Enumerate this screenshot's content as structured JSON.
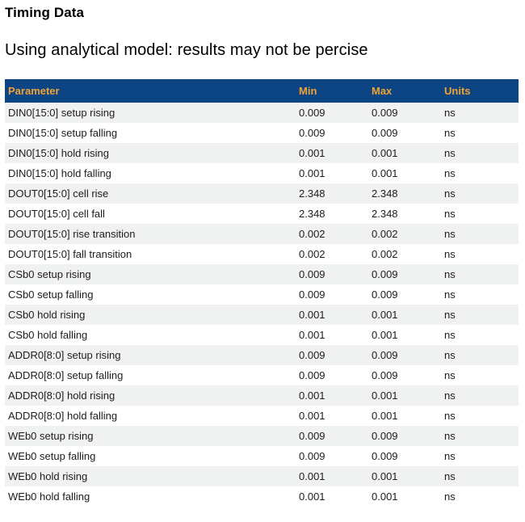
{
  "page": {
    "title": "Timing Data",
    "subtitle": "Using analytical model: results may not be percise"
  },
  "table": {
    "columns": [
      "Parameter",
      "Min",
      "Max",
      "Units"
    ],
    "rows": [
      {
        "parameter": "DIN0[15:0] setup rising",
        "min": "0.009",
        "max": "0.009",
        "units": "ns"
      },
      {
        "parameter": "DIN0[15:0] setup falling",
        "min": "0.009",
        "max": "0.009",
        "units": "ns"
      },
      {
        "parameter": "DIN0[15:0] hold rising",
        "min": "0.001",
        "max": "0.001",
        "units": "ns"
      },
      {
        "parameter": "DIN0[15:0] hold falling",
        "min": "0.001",
        "max": "0.001",
        "units": "ns"
      },
      {
        "parameter": "DOUT0[15:0] cell rise",
        "min": "2.348",
        "max": "2.348",
        "units": "ns"
      },
      {
        "parameter": "DOUT0[15:0] cell fall",
        "min": "2.348",
        "max": "2.348",
        "units": "ns"
      },
      {
        "parameter": "DOUT0[15:0] rise transition",
        "min": "0.002",
        "max": "0.002",
        "units": "ns"
      },
      {
        "parameter": "DOUT0[15:0] fall transition",
        "min": "0.002",
        "max": "0.002",
        "units": "ns"
      },
      {
        "parameter": "CSb0 setup rising",
        "min": "0.009",
        "max": "0.009",
        "units": "ns"
      },
      {
        "parameter": "CSb0 setup falling",
        "min": "0.009",
        "max": "0.009",
        "units": "ns"
      },
      {
        "parameter": "CSb0 hold rising",
        "min": "0.001",
        "max": "0.001",
        "units": "ns"
      },
      {
        "parameter": "CSb0 hold falling",
        "min": "0.001",
        "max": "0.001",
        "units": "ns"
      },
      {
        "parameter": "ADDR0[8:0] setup rising",
        "min": "0.009",
        "max": "0.009",
        "units": "ns"
      },
      {
        "parameter": "ADDR0[8:0] setup falling",
        "min": "0.009",
        "max": "0.009",
        "units": "ns"
      },
      {
        "parameter": "ADDR0[8:0] hold rising",
        "min": "0.001",
        "max": "0.001",
        "units": "ns"
      },
      {
        "parameter": "ADDR0[8:0] hold falling",
        "min": "0.001",
        "max": "0.001",
        "units": "ns"
      },
      {
        "parameter": "WEb0 setup rising",
        "min": "0.009",
        "max": "0.009",
        "units": "ns"
      },
      {
        "parameter": "WEb0 setup falling",
        "min": "0.009",
        "max": "0.009",
        "units": "ns"
      },
      {
        "parameter": "WEb0 hold rising",
        "min": "0.001",
        "max": "0.001",
        "units": "ns"
      },
      {
        "parameter": "WEb0 hold falling",
        "min": "0.001",
        "max": "0.001",
        "units": "ns"
      }
    ]
  },
  "colors": {
    "header_bg": "#0D4484",
    "header_text": "#F0A436",
    "row_stripe": "#F0F1F1",
    "row_bg": "#FFFFFF",
    "body_text": "#1C1C1C",
    "heading_text": "#000000"
  }
}
